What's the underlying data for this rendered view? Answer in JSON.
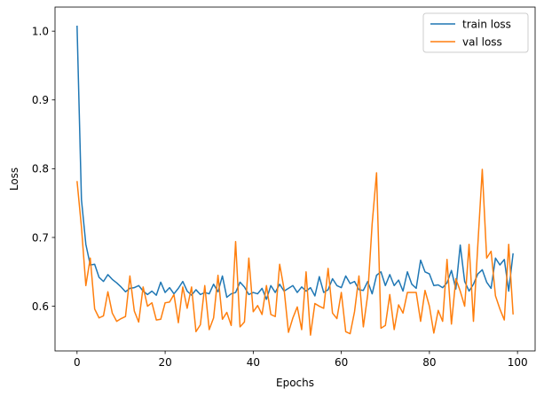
{
  "chart_data": {
    "type": "line",
    "title": "",
    "xlabel": "Epochs",
    "ylabel": "Loss",
    "xlim": [
      -5,
      104
    ],
    "ylim": [
      0.535,
      1.035
    ],
    "xticks": [
      0,
      20,
      40,
      60,
      80,
      100
    ],
    "yticks": [
      0.6,
      0.7,
      0.8,
      0.9,
      1.0
    ],
    "xtick_labels": [
      "0",
      "20",
      "40",
      "60",
      "80",
      "100"
    ],
    "ytick_labels": [
      "0.6",
      "0.7",
      "0.8",
      "0.9",
      "1.0"
    ],
    "grid": false,
    "legend_position": "top-right",
    "series": [
      {
        "name": "train loss",
        "color": "#1f77b4",
        "x": [
          0,
          1,
          2,
          3,
          4,
          5,
          6,
          7,
          8,
          9,
          10,
          11,
          12,
          13,
          14,
          15,
          16,
          17,
          18,
          19,
          20,
          21,
          22,
          23,
          24,
          25,
          26,
          27,
          28,
          29,
          30,
          31,
          32,
          33,
          34,
          35,
          36,
          37,
          38,
          39,
          40,
          41,
          42,
          43,
          44,
          45,
          46,
          47,
          48,
          49,
          50,
          51,
          52,
          53,
          54,
          55,
          56,
          57,
          58,
          59,
          60,
          61,
          62,
          63,
          64,
          65,
          66,
          67,
          68,
          69,
          70,
          71,
          72,
          73,
          74,
          75,
          76,
          77,
          78,
          79,
          80,
          81,
          82,
          83,
          84,
          85,
          86,
          87,
          88,
          89,
          90,
          91,
          92,
          93,
          94,
          95,
          96,
          97,
          98,
          99
        ],
        "values": [
          1.008,
          0.755,
          0.69,
          0.66,
          0.661,
          0.642,
          0.636,
          0.646,
          0.639,
          0.634,
          0.628,
          0.621,
          0.626,
          0.627,
          0.63,
          0.622,
          0.617,
          0.622,
          0.616,
          0.635,
          0.62,
          0.627,
          0.618,
          0.626,
          0.636,
          0.622,
          0.616,
          0.624,
          0.617,
          0.62,
          0.618,
          0.632,
          0.621,
          0.644,
          0.613,
          0.618,
          0.62,
          0.635,
          0.628,
          0.617,
          0.62,
          0.618,
          0.626,
          0.61,
          0.63,
          0.62,
          0.632,
          0.622,
          0.626,
          0.63,
          0.62,
          0.628,
          0.622,
          0.627,
          0.615,
          0.643,
          0.62,
          0.624,
          0.64,
          0.63,
          0.627,
          0.644,
          0.633,
          0.636,
          0.624,
          0.623,
          0.636,
          0.618,
          0.645,
          0.65,
          0.63,
          0.646,
          0.63,
          0.638,
          0.622,
          0.65,
          0.632,
          0.626,
          0.667,
          0.65,
          0.647,
          0.63,
          0.631,
          0.627,
          0.634,
          0.652,
          0.625,
          0.689,
          0.636,
          0.622,
          0.632,
          0.647,
          0.653,
          0.635,
          0.626,
          0.67,
          0.66,
          0.668,
          0.622,
          0.677
        ]
      },
      {
        "name": "val loss",
        "color": "#ff7f0e",
        "x": [
          0,
          1,
          2,
          3,
          4,
          5,
          6,
          7,
          8,
          9,
          10,
          11,
          12,
          13,
          14,
          15,
          16,
          17,
          18,
          19,
          20,
          21,
          22,
          23,
          24,
          25,
          26,
          27,
          28,
          29,
          30,
          31,
          32,
          33,
          34,
          35,
          36,
          37,
          38,
          39,
          40,
          41,
          42,
          43,
          44,
          45,
          46,
          47,
          48,
          49,
          50,
          51,
          52,
          53,
          54,
          55,
          56,
          57,
          58,
          59,
          60,
          61,
          62,
          63,
          64,
          65,
          66,
          67,
          68,
          69,
          70,
          71,
          72,
          73,
          74,
          75,
          76,
          77,
          78,
          79,
          80,
          81,
          82,
          83,
          84,
          85,
          86,
          87,
          88,
          89,
          90,
          91,
          92,
          93,
          94,
          95,
          96,
          97,
          98,
          99
        ],
        "values": [
          0.782,
          0.715,
          0.63,
          0.67,
          0.596,
          0.583,
          0.586,
          0.621,
          0.59,
          0.578,
          0.582,
          0.585,
          0.644,
          0.593,
          0.577,
          0.628,
          0.6,
          0.605,
          0.58,
          0.581,
          0.605,
          0.606,
          0.617,
          0.576,
          0.628,
          0.597,
          0.628,
          0.563,
          0.573,
          0.63,
          0.566,
          0.583,
          0.645,
          0.581,
          0.591,
          0.572,
          0.694,
          0.57,
          0.577,
          0.67,
          0.592,
          0.601,
          0.588,
          0.63,
          0.588,
          0.585,
          0.661,
          0.625,
          0.562,
          0.583,
          0.599,
          0.566,
          0.65,
          0.558,
          0.604,
          0.6,
          0.597,
          0.655,
          0.59,
          0.582,
          0.62,
          0.563,
          0.56,
          0.592,
          0.644,
          0.57,
          0.617,
          0.72,
          0.794,
          0.568,
          0.572,
          0.617,
          0.566,
          0.602,
          0.59,
          0.62,
          0.62,
          0.62,
          0.578,
          0.623,
          0.6,
          0.561,
          0.594,
          0.578,
          0.668,
          0.574,
          0.64,
          0.622,
          0.6,
          0.69,
          0.578,
          0.69,
          0.799,
          0.67,
          0.68,
          0.615,
          0.596,
          0.58,
          0.69,
          0.588
        ]
      }
    ]
  }
}
